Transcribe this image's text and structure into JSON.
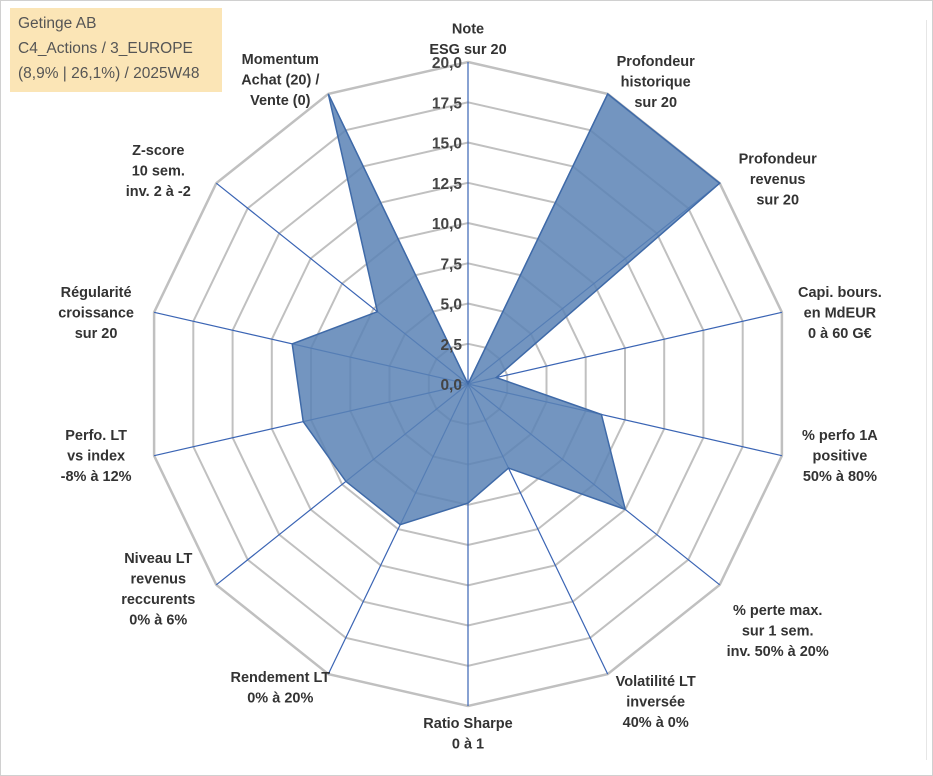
{
  "info_box": {
    "line1": "Getinge AB",
    "line2": "C4_Actions / 3_EUROPE",
    "line3": "(8,9% | 26,1%) / 2025W48"
  },
  "colors": {
    "grid": "#c0c0c0",
    "spoke": "#3a64b4",
    "fill": "#5b82b5",
    "stroke": "#3f6aa8",
    "info_bg": "#fbe5b6"
  },
  "chart_data": {
    "type": "radar",
    "title": "",
    "r_min": 0,
    "r_max": 20,
    "r_step": 2.5,
    "tick_labels": [
      "0,0",
      "2,5",
      "5,0",
      "7,5",
      "10,0",
      "12,5",
      "15,0",
      "17,5",
      "20,0"
    ],
    "axes": [
      {
        "label": [
          "Note",
          "ESG sur 20"
        ],
        "value": 0
      },
      {
        "label": [
          "Profondeur",
          "historique",
          "sur 20"
        ],
        "value": 20
      },
      {
        "label": [
          "Profondeur",
          "revenus",
          "sur 20"
        ],
        "value": 20
      },
      {
        "label": [
          "Capi. bours.",
          "en MdEUR",
          "0 à 60 G€"
        ],
        "value": 1.8
      },
      {
        "label": [
          "% perfo 1A",
          "positive",
          "50% à 80%"
        ],
        "value": 8.5
      },
      {
        "label": [
          "% perte max.",
          "sur 1 sem.",
          "inv. 50% à 20%"
        ],
        "value": 12.5
      },
      {
        "label": [
          "Volatilité LT",
          "inversée",
          "40% à 0%"
        ],
        "value": 5.8
      },
      {
        "label": [
          "Ratio Sharpe",
          "0 à 1"
        ],
        "value": 7.4
      },
      {
        "label": [
          "Rendement LT",
          "0% à 20%"
        ],
        "value": 9.7
      },
      {
        "label": [
          "Niveau LT",
          "revenus",
          "reccurents",
          "0% à 6%"
        ],
        "value": 9.7
      },
      {
        "label": [
          "Perfo. LT",
          "vs index",
          "-8% à 12%"
        ],
        "value": 10.5
      },
      {
        "label": [
          "Régularité",
          "croissance",
          "sur 20"
        ],
        "value": 11.2
      },
      {
        "label": [
          "Z-score",
          "10 sem.",
          "inv. 2 à -2"
        ],
        "value": 7.2
      },
      {
        "label": [
          "Momentum",
          "Achat (20) /",
          "Vente (0)"
        ],
        "value": 20
      }
    ]
  }
}
